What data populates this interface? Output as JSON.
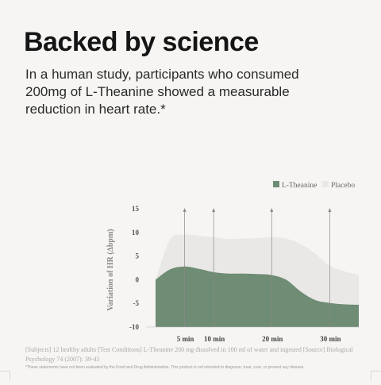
{
  "headline": "Backed by science",
  "subhead": "In a human study, participants who consumed 200mg of L-Theanine showed a measurable reduction in heart rate.*",
  "source_note": "[Subjects] 12 healthy adults [Test Conditions] L-Theanine 200 mg dissolved in 100 ml of water and ingested [Source] Biological Psychology 74 (2007): 39-45",
  "disclaimer": "*These statements have not been evaluated by the Food and Drug Administration. This product is not intended to diagnose, treat, cure, or prevent any disease.",
  "colors": {
    "l_theanine": "#6f8c74",
    "placebo": "#e9e8e6",
    "background": "#f6f5f3"
  },
  "chart_data": {
    "type": "area",
    "ylabel": "Variation of HR (∆bpm)",
    "xlabel": "",
    "x": [
      0,
      2.5,
      5,
      7.5,
      10,
      12.5,
      15,
      17.5,
      20,
      22.5,
      25,
      27.5,
      30,
      32.5,
      35
    ],
    "xlim": [
      0,
      35
    ],
    "ylim": [
      -10,
      15
    ],
    "y_ticks": [
      "15",
      "10",
      "5",
      "0",
      "-5",
      "-10"
    ],
    "y_tick_values": [
      15,
      10,
      5,
      0,
      -5,
      -10
    ],
    "x_ticks": [
      "5 min",
      "10 min",
      "20 min",
      "30 min"
    ],
    "x_tick_values": [
      5,
      10,
      20,
      30
    ],
    "legend": "top-right",
    "grid": false,
    "series": [
      {
        "name": "Placebo",
        "values": [
          0,
          8.5,
          9.5,
          9.3,
          9,
          8.6,
          8.7,
          8.8,
          9,
          8.7,
          7.5,
          5.5,
          3,
          1.8,
          1
        ]
      },
      {
        "name": "L-Theanine",
        "values": [
          0,
          2.2,
          2.8,
          2.3,
          1.6,
          1.3,
          1.3,
          1.2,
          1,
          0,
          -2.5,
          -4.3,
          -4.9,
          -5.2,
          -5.3
        ]
      }
    ]
  }
}
